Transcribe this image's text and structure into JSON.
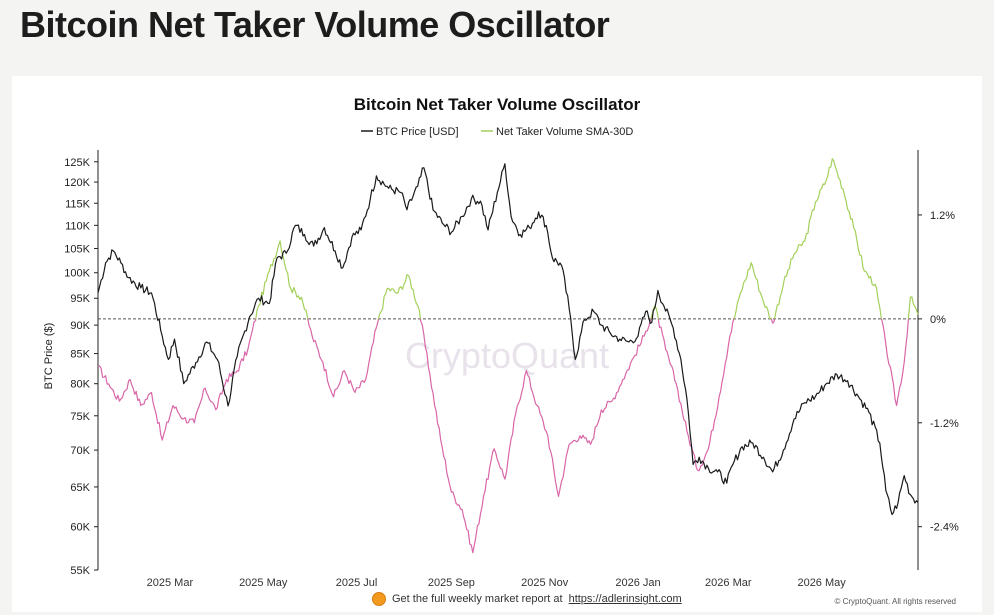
{
  "page": {
    "title": "Bitcoin Net Taker Volume Oscillator"
  },
  "footer": {
    "text": "Get the full weekly market report at",
    "link_text": "https://adlerinsight.com",
    "copyright": "© CryptoQuant. All rights reserved"
  },
  "watermark": "CryptoQuant",
  "colors": {
    "price_line": "#1a1a1a",
    "osc_positive": "#a4d05a",
    "osc_negative": "#d966a8",
    "zero_line": "#555555"
  },
  "chart_data": {
    "type": "line",
    "title": "Bitcoin Net Taker Volume Oscillator",
    "legend_position": "top-center",
    "legend": [
      "BTC Price [USD]",
      "Net Taker Volume SMA-30D"
    ],
    "x_labels": [
      "2025 Mar",
      "2025 May",
      "2025 Jul",
      "2025 Sep",
      "2025 Nov",
      "2026 Jan",
      "2026 Mar",
      "2026 May"
    ],
    "x_range": [
      "2025-01-13",
      "2026-07-03"
    ],
    "y_left": {
      "label": "BTC Price ($)",
      "scale": "log",
      "range": [
        55000,
        128000
      ],
      "ticks": [
        55000,
        60000,
        65000,
        70000,
        75000,
        80000,
        85000,
        90000,
        95000,
        100000,
        105000,
        110000,
        115000,
        120000,
        125000
      ],
      "tick_labels": [
        "55K",
        "60K",
        "65K",
        "70K",
        "75K",
        "80K",
        "85K",
        "90K",
        "95K",
        "100K",
        "105K",
        "110K",
        "115K",
        "120K",
        "125K"
      ]
    },
    "y_right": {
      "range": [
        -2.9,
        1.95
      ],
      "ticks": [
        1.2,
        0,
        -1.2,
        -2.4
      ],
      "tick_labels": [
        "1.2%",
        "0%",
        "-1.2%",
        "-2.4%"
      ],
      "zero_line": true
    },
    "series": [
      {
        "name": "BTC Price [USD]",
        "axis": "left",
        "points": [
          [
            "2025-01-13",
            96000
          ],
          [
            "2025-01-18",
            102000
          ],
          [
            "2025-01-23",
            104500
          ],
          [
            "2025-01-28",
            102000
          ],
          [
            "2025-02-02",
            99000
          ],
          [
            "2025-02-10",
            97000
          ],
          [
            "2025-02-17",
            96000
          ],
          [
            "2025-02-24",
            88000
          ],
          [
            "2025-02-28",
            84000
          ],
          [
            "2025-03-04",
            87500
          ],
          [
            "2025-03-10",
            80000
          ],
          [
            "2025-03-18",
            83500
          ],
          [
            "2025-03-25",
            87000
          ],
          [
            "2025-04-01",
            84000
          ],
          [
            "2025-04-08",
            76500
          ],
          [
            "2025-04-14",
            84500
          ],
          [
            "2025-04-22",
            91500
          ],
          [
            "2025-04-28",
            95000
          ],
          [
            "2025-05-05",
            94000
          ],
          [
            "2025-05-10",
            103000
          ],
          [
            "2025-05-16",
            104000
          ],
          [
            "2025-05-22",
            110000
          ],
          [
            "2025-05-28",
            108000
          ],
          [
            "2025-06-03",
            105500
          ],
          [
            "2025-06-10",
            109500
          ],
          [
            "2025-06-17",
            104500
          ],
          [
            "2025-06-22",
            101000
          ],
          [
            "2025-06-28",
            107500
          ],
          [
            "2025-07-04",
            109000
          ],
          [
            "2025-07-10",
            116000
          ],
          [
            "2025-07-14",
            121500
          ],
          [
            "2025-07-22",
            118500
          ],
          [
            "2025-07-30",
            117500
          ],
          [
            "2025-08-03",
            113500
          ],
          [
            "2025-08-10",
            119000
          ],
          [
            "2025-08-14",
            123500
          ],
          [
            "2025-08-20",
            113500
          ],
          [
            "2025-08-26",
            110500
          ],
          [
            "2025-09-01",
            108500
          ],
          [
            "2025-09-08",
            112000
          ],
          [
            "2025-09-14",
            116000
          ],
          [
            "2025-09-20",
            115500
          ],
          [
            "2025-09-25",
            109000
          ],
          [
            "2025-10-01",
            117500
          ],
          [
            "2025-10-06",
            124500
          ],
          [
            "2025-10-10",
            112000
          ],
          [
            "2025-10-16",
            108000
          ],
          [
            "2025-10-22",
            109500
          ],
          [
            "2025-10-28",
            113000
          ],
          [
            "2025-11-02",
            110000
          ],
          [
            "2025-11-06",
            103000
          ],
          [
            "2025-11-12",
            101500
          ],
          [
            "2025-11-17",
            93000
          ],
          [
            "2025-11-21",
            84000
          ],
          [
            "2025-11-27",
            91000
          ],
          [
            "2025-12-03",
            92500
          ],
          [
            "2025-12-08",
            90000
          ],
          [
            "2025-12-14",
            88500
          ],
          [
            "2025-12-20",
            87500
          ],
          [
            "2025-12-26",
            87000
          ],
          [
            "2026-01-01",
            88000
          ],
          [
            "2026-01-06",
            92500
          ],
          [
            "2026-01-10",
            90500
          ],
          [
            "2026-01-14",
            96500
          ],
          [
            "2026-01-18",
            93500
          ],
          [
            "2026-01-24",
            89500
          ],
          [
            "2026-01-29",
            84000
          ],
          [
            "2026-02-02",
            77500
          ],
          [
            "2026-02-06",
            68000
          ],
          [
            "2026-02-10",
            69000
          ],
          [
            "2026-02-16",
            67500
          ],
          [
            "2026-02-22",
            67000
          ],
          [
            "2026-02-28",
            65500
          ],
          [
            "2026-03-04",
            68000
          ],
          [
            "2026-03-10",
            70500
          ],
          [
            "2026-03-17",
            71000
          ],
          [
            "2026-03-24",
            69000
          ],
          [
            "2026-03-30",
            67000
          ],
          [
            "2026-04-06",
            70000
          ],
          [
            "2026-04-13",
            74500
          ],
          [
            "2026-04-20",
            77000
          ],
          [
            "2026-04-27",
            78000
          ],
          [
            "2026-05-04",
            80000
          ],
          [
            "2026-05-11",
            81500
          ],
          [
            "2026-05-18",
            80500
          ],
          [
            "2026-05-25",
            78000
          ],
          [
            "2026-06-01",
            75500
          ],
          [
            "2026-06-08",
            71000
          ],
          [
            "2026-06-12",
            64500
          ],
          [
            "2026-06-16",
            61500
          ],
          [
            "2026-06-20",
            63000
          ],
          [
            "2026-06-24",
            66500
          ],
          [
            "2026-06-28",
            64000
          ],
          [
            "2026-07-03",
            63000
          ]
        ]
      },
      {
        "name": "Net Taker Volume SMA-30D",
        "axis": "right",
        "points": [
          [
            "2025-01-13",
            -0.55
          ],
          [
            "2025-01-20",
            -0.75
          ],
          [
            "2025-01-27",
            -0.95
          ],
          [
            "2025-02-03",
            -0.7
          ],
          [
            "2025-02-10",
            -1.0
          ],
          [
            "2025-02-17",
            -0.85
          ],
          [
            "2025-02-24",
            -1.4
          ],
          [
            "2025-03-03",
            -1.0
          ],
          [
            "2025-03-10",
            -1.15
          ],
          [
            "2025-03-17",
            -1.2
          ],
          [
            "2025-03-24",
            -0.8
          ],
          [
            "2025-03-31",
            -1.05
          ],
          [
            "2025-04-07",
            -0.7
          ],
          [
            "2025-04-14",
            -0.6
          ],
          [
            "2025-04-21",
            -0.35
          ],
          [
            "2025-04-28",
            0.15
          ],
          [
            "2025-05-05",
            0.55
          ],
          [
            "2025-05-12",
            0.9
          ],
          [
            "2025-05-19",
            0.35
          ],
          [
            "2025-05-26",
            0.25
          ],
          [
            "2025-06-02",
            -0.2
          ],
          [
            "2025-06-09",
            -0.5
          ],
          [
            "2025-06-16",
            -0.9
          ],
          [
            "2025-06-23",
            -0.6
          ],
          [
            "2025-06-30",
            -0.85
          ],
          [
            "2025-07-07",
            -0.7
          ],
          [
            "2025-07-14",
            -0.1
          ],
          [
            "2025-07-21",
            0.35
          ],
          [
            "2025-07-28",
            0.3
          ],
          [
            "2025-08-04",
            0.5
          ],
          [
            "2025-08-11",
            0.1
          ],
          [
            "2025-08-18",
            -0.65
          ],
          [
            "2025-08-25",
            -1.4
          ],
          [
            "2025-09-01",
            -2.0
          ],
          [
            "2025-09-08",
            -2.2
          ],
          [
            "2025-09-15",
            -2.7
          ],
          [
            "2025-09-22",
            -2.05
          ],
          [
            "2025-09-29",
            -1.5
          ],
          [
            "2025-10-06",
            -1.85
          ],
          [
            "2025-10-13",
            -1.1
          ],
          [
            "2025-10-20",
            -0.6
          ],
          [
            "2025-10-27",
            -1.0
          ],
          [
            "2025-11-03",
            -1.35
          ],
          [
            "2025-11-10",
            -2.05
          ],
          [
            "2025-11-17",
            -1.45
          ],
          [
            "2025-11-24",
            -1.35
          ],
          [
            "2025-12-01",
            -1.45
          ],
          [
            "2025-12-08",
            -1.05
          ],
          [
            "2025-12-15",
            -0.95
          ],
          [
            "2025-12-22",
            -0.7
          ],
          [
            "2025-12-29",
            -0.45
          ],
          [
            "2026-01-05",
            -0.2
          ],
          [
            "2026-01-12",
            0.15
          ],
          [
            "2026-01-19",
            -0.35
          ],
          [
            "2026-01-26",
            -0.75
          ],
          [
            "2026-02-02",
            -1.3
          ],
          [
            "2026-02-09",
            -1.75
          ],
          [
            "2026-02-16",
            -1.5
          ],
          [
            "2026-02-23",
            -0.9
          ],
          [
            "2026-03-02",
            -0.2
          ],
          [
            "2026-03-09",
            0.3
          ],
          [
            "2026-03-16",
            0.65
          ],
          [
            "2026-03-23",
            0.25
          ],
          [
            "2026-03-30",
            -0.05
          ],
          [
            "2026-04-06",
            0.4
          ],
          [
            "2026-04-13",
            0.75
          ],
          [
            "2026-04-20",
            0.9
          ],
          [
            "2026-04-27",
            1.35
          ],
          [
            "2026-05-04",
            1.6
          ],
          [
            "2026-05-08",
            1.85
          ],
          [
            "2026-05-15",
            1.5
          ],
          [
            "2026-05-22",
            1.05
          ],
          [
            "2026-05-29",
            0.55
          ],
          [
            "2026-06-05",
            0.4
          ],
          [
            "2026-06-12",
            -0.3
          ],
          [
            "2026-06-19",
            -1.0
          ],
          [
            "2026-06-24",
            -0.5
          ],
          [
            "2026-06-28",
            0.25
          ],
          [
            "2026-07-03",
            0.05
          ]
        ]
      }
    ]
  }
}
